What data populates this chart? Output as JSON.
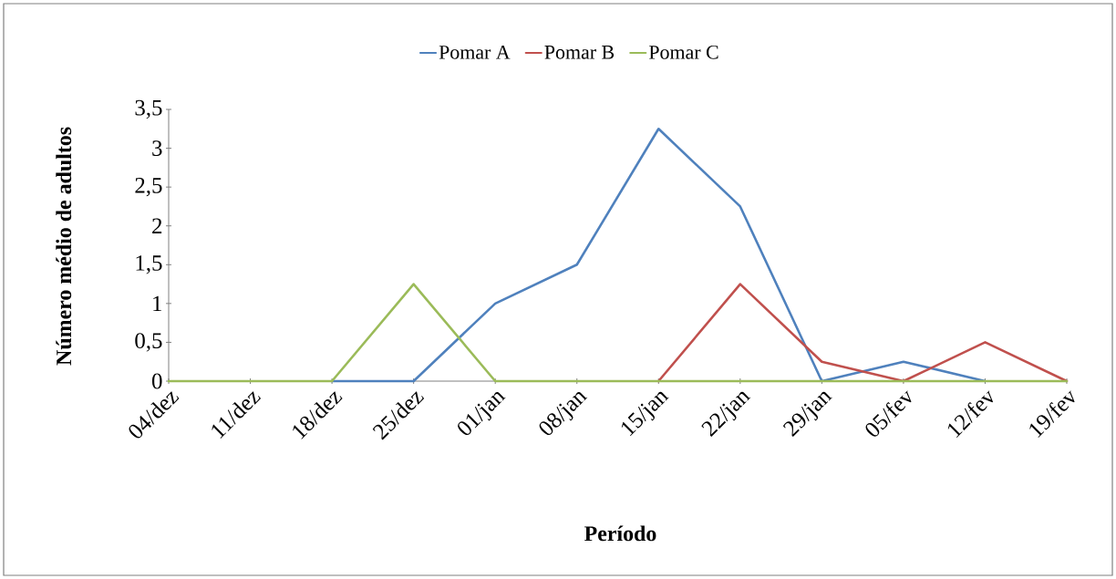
{
  "chart_data": {
    "type": "line",
    "xlabel": "Período",
    "ylabel": "Número médio de adultos",
    "categories": [
      "04/dez",
      "11/dez",
      "18/dez",
      "25/dez",
      "01/jan",
      "08/jan",
      "15/jan",
      "22/jan",
      "29/jan",
      "05/fev",
      "12/fev",
      "19/fev"
    ],
    "series": [
      {
        "name": "Pomar A",
        "color": "#4f81bd",
        "values": [
          null,
          null,
          0,
          0,
          1,
          1.5,
          3.25,
          2.25,
          0,
          0.25,
          0,
          null
        ]
      },
      {
        "name": "Pomar B",
        "color": "#c0504d",
        "values": [
          null,
          null,
          null,
          null,
          null,
          null,
          0,
          1.25,
          0.25,
          0,
          0.5,
          0
        ]
      },
      {
        "name": "Pomar C",
        "color": "#9bbb59",
        "values": [
          0,
          0,
          0,
          1.25,
          0,
          0,
          0,
          0,
          0,
          0,
          0,
          0
        ]
      }
    ],
    "ylim": [
      0,
      3.5
    ],
    "yticks": [
      0,
      {
        "value": 0.5,
        "label": "0,5"
      },
      1,
      {
        "value": 1.5,
        "label": "1,5"
      },
      2,
      {
        "value": 2.5,
        "label": "2,5"
      },
      3,
      {
        "value": 3.5,
        "label": "3,5"
      }
    ],
    "grid": false,
    "legend": "top",
    "marker": "none",
    "line_style": "solid"
  }
}
